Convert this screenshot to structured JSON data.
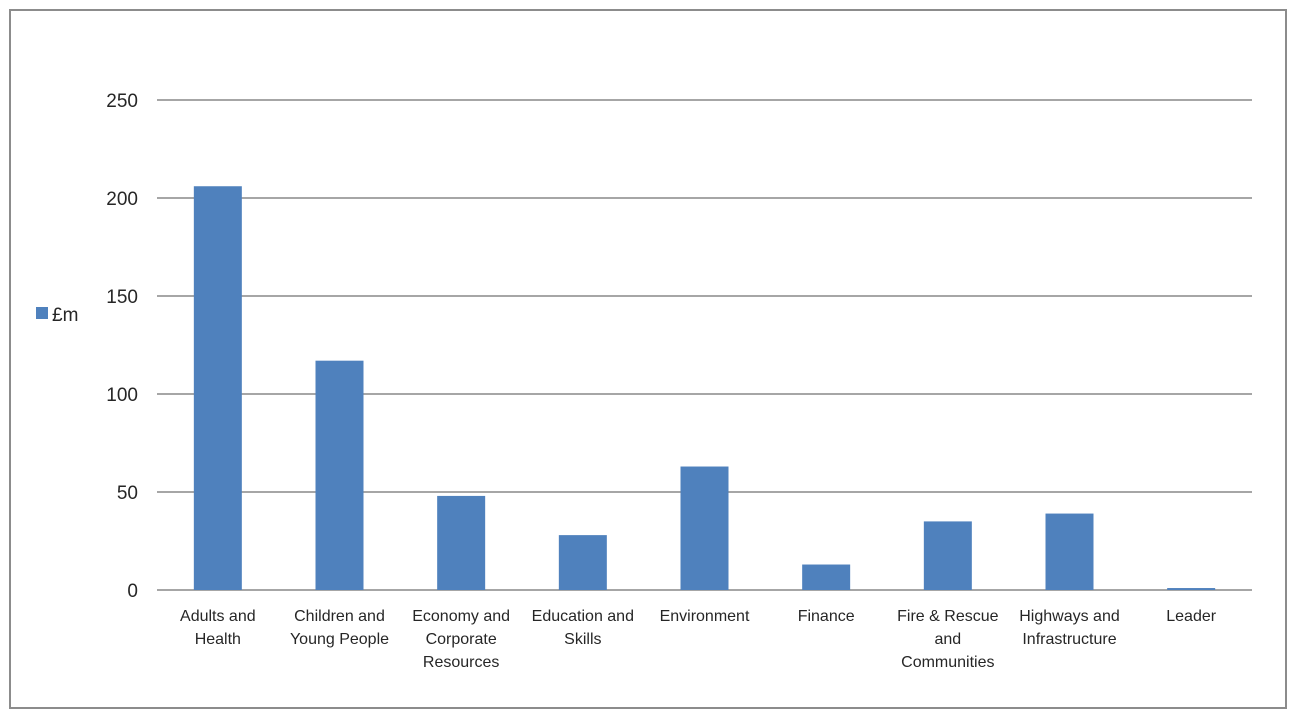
{
  "chart_data": {
    "type": "bar",
    "categories": [
      [
        "Adults and",
        "Health"
      ],
      [
        "Children and",
        "Young People"
      ],
      [
        "Economy and",
        "Corporate",
        "Resources"
      ],
      [
        "Education and",
        "Skills"
      ],
      [
        "Environment"
      ],
      [
        "Finance"
      ],
      [
        "Fire & Rescue",
        "and",
        "Communities"
      ],
      [
        "Highways and",
        "Infrastructure"
      ],
      [
        "Leader"
      ]
    ],
    "series": [
      {
        "name": "£m",
        "values": [
          206,
          117,
          48,
          28,
          63,
          13,
          35,
          39,
          1
        ]
      }
    ],
    "ylim": [
      0,
      250
    ],
    "yticks": [
      0,
      50,
      100,
      150,
      200,
      250
    ],
    "grid": true,
    "legend_position": "left",
    "colors": {
      "bar": "#4f81bd",
      "grid": "#888888",
      "text": "#262626"
    }
  }
}
